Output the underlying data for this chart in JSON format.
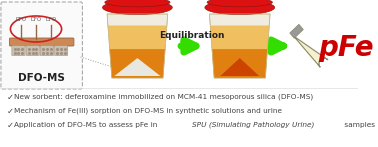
{
  "background_color": "#ffffff",
  "bullet_texts": [
    "New sorbent: deferoxamine immobilized on MCM-41 mesoporous silica (DFO-MS)",
    "Mechanism of Fe(III) sorption on DFO-MS in synthetic solutions and urine",
    "Application of DFO-MS to assess pFe in SPU (Simulating Pathology Urine) samples"
  ],
  "equilibration_text": "Equilibration",
  "pFe_text": "pFe",
  "dfo_ms_text": "DFO-MS",
  "arrow_color": "#33dd00",
  "pFe_color": "#cc0000",
  "text_color": "#222222",
  "bullet_color": "#444444",
  "dfo_ms_color": "#222222",
  "lid_color": "#dd1111",
  "lid_edge": "#991111",
  "cup_body_color": "#f0ece0",
  "cup_edge_color": "#c8b888",
  "urine_top_color": "#f0c060",
  "urine_bot_color": "#e08010",
  "white_powder_color": "#e8e8e0",
  "orange_powder_color": "#cc4400",
  "box_edge_color": "#aaaaaa",
  "box_face_color": "#fafafa",
  "bar_face_color": "#cc8855",
  "bar_edge_color": "#996644",
  "silica_face_color": "#c8c0b0",
  "silica_edge_color": "#a09080",
  "dfo_label_color": "#555555",
  "red_ellipse_color": "#cc2222",
  "dot_line_color": "#999999",
  "tube_body_color": "#f5f0d0",
  "tube_liquid_color": "#e8a010",
  "tube_cap_color": "#999999",
  "tube_edge_color": "#888866",
  "sep_line_color": "#dddddd"
}
